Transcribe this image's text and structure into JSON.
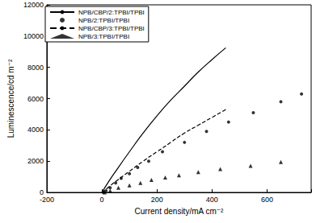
{
  "chart_data": {
    "type": "line",
    "x_label": "Current density/mA cm⁻²",
    "y_label": "Luminescence/cd m⁻²",
    "xlim": [
      -200,
      760
    ],
    "xticks": [
      -200,
      0,
      200,
      400,
      600
    ],
    "ylim": [
      0,
      12000
    ],
    "yticks": [
      0,
      2000,
      4000,
      6000,
      8000,
      10000,
      12000
    ],
    "grid": false,
    "legend": "upper left",
    "series": [
      {
        "name": "NPB/CBP/2:TPBI/TPBI",
        "type": "line",
        "line_style": "solid",
        "color": "#000000",
        "x": [
          0,
          25,
          50,
          100,
          150,
          200,
          250,
          300,
          350,
          400,
          450
        ],
        "values": [
          0,
          700,
          1350,
          2600,
          3800,
          4900,
          5900,
          6800,
          7700,
          8500,
          9250
        ]
      },
      {
        "name": "NPB/2:TPBI/TPBI",
        "type": "scatter",
        "marker": "circle",
        "color": "#000000",
        "x": [
          5,
          15,
          30,
          50,
          70,
          100,
          130,
          170,
          220,
          300,
          380,
          460,
          550,
          650,
          725
        ],
        "values": [
          0,
          100,
          300,
          600,
          900,
          1200,
          1600,
          2000,
          2600,
          3200,
          3900,
          4500,
          5100,
          5800,
          6300
        ]
      },
      {
        "name": "NPB/CBP/3:TPBI/TPBI",
        "type": "line",
        "line_style": "dashed",
        "color": "#000000",
        "x": [
          0,
          25,
          50,
          100,
          150,
          200,
          250,
          300,
          350,
          400,
          450
        ],
        "values": [
          0,
          350,
          700,
          1350,
          2000,
          2600,
          3200,
          3800,
          4300,
          4800,
          5300
        ]
      },
      {
        "name": "NPB/3:TPBI/TPBI",
        "type": "scatter",
        "marker": "triangle",
        "color": "#000000",
        "x": [
          10,
          30,
          60,
          100,
          140,
          180,
          230,
          280,
          350,
          430,
          540,
          650
        ],
        "values": [
          0,
          100,
          300,
          450,
          600,
          800,
          950,
          1100,
          1300,
          1500,
          1700,
          1950
        ]
      }
    ]
  }
}
